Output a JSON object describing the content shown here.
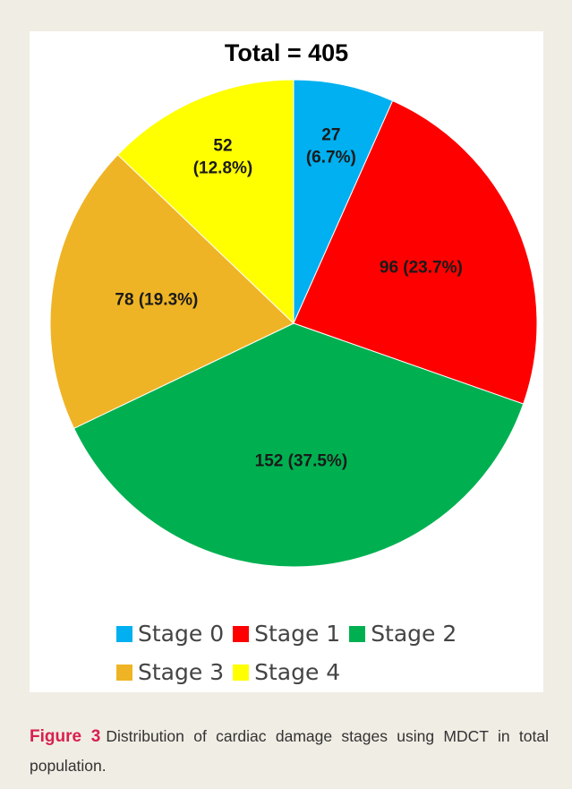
{
  "chart_data": {
    "type": "pie",
    "title": "Total = 405",
    "categories": [
      "Stage 0",
      "Stage 1",
      "Stage 2",
      "Stage 3",
      "Stage 4"
    ],
    "values": [
      27,
      96,
      152,
      78,
      52
    ],
    "value_labels": [
      "27 (6.7%)",
      "96 (23.7%)",
      "152 (37.5%)",
      "78 (19.3%)",
      "52 (12.8%)"
    ],
    "colors": [
      "#00b0f0",
      "#ff0000",
      "#00b050",
      "#efb425",
      "#ffff00"
    ]
  },
  "caption": {
    "label": "Figure 3",
    "text": "Distribution of cardiac damage stages using MDCT in total population."
  }
}
